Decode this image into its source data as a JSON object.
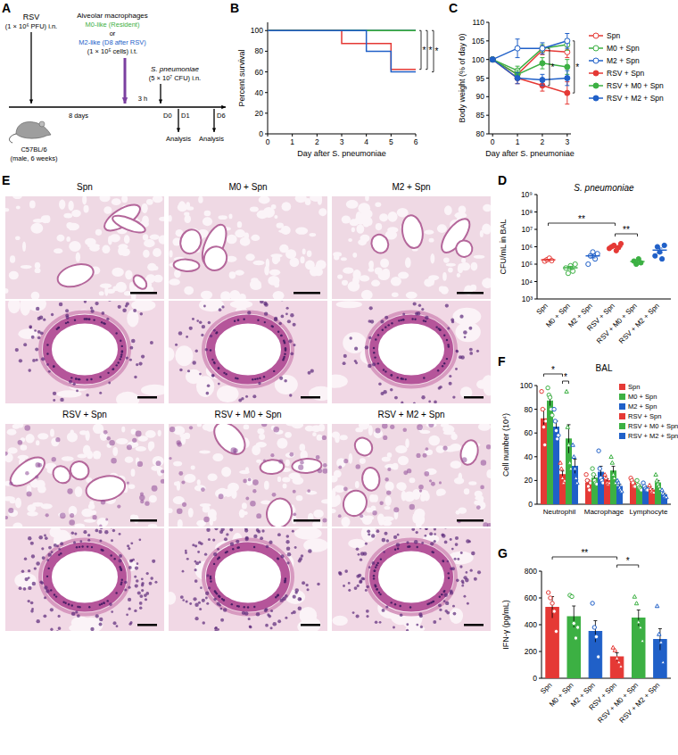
{
  "schematic": {
    "panel": "A",
    "rsv": "RSV",
    "rsv_dose": "(1 × 10⁶ PFU) i.n.",
    "am_title": "Alveolar macrophages",
    "m0": "M0-like (Resident)",
    "or": "or",
    "m2": "M2-like (D8 after RSV)",
    "am_dose": "(1 × 10⁵ cells) i.t.",
    "spn": "S. pneumoniae",
    "spn_dose": "(5 × 10⁷ CFU) i.n.",
    "interval": "8 days",
    "delay": "3 h",
    "mouse": "C57BL/6",
    "mouse_info": "(male, 6 weeks)",
    "d0": "D0",
    "timepoints": [
      {
        "day": "D1",
        "label": "Analysis"
      },
      {
        "day": "D6",
        "label": "Analysis"
      }
    ],
    "m0_color": "#3cb043",
    "m2_color": "#2060c8",
    "arrow_color": "#7b3fa0"
  },
  "histology": {
    "panel": "E",
    "rows": [
      [
        "Spn",
        "M0 + Spn",
        "M2 + Spn"
      ],
      [
        "RSV + Spn",
        "RSV + M0 + Spn",
        "RSV + M2 + Spn"
      ]
    ]
  },
  "chart_data": [
    {
      "panel": "B",
      "type": "line",
      "line_style": "step",
      "x_label": "Day after S. pneumoniae",
      "y_label": "Percent survival",
      "x": [
        0,
        1,
        2,
        3,
        4,
        5,
        6
      ],
      "xlim": [
        0,
        6
      ],
      "xticks": [
        0,
        1,
        2,
        3,
        4,
        5,
        6
      ],
      "ylim": [
        0,
        108
      ],
      "yticks": [
        0,
        20,
        40,
        60,
        80,
        100
      ],
      "series": [
        {
          "name": "Spn",
          "color": "#e53935",
          "values": [
            100,
            100,
            100,
            100,
            100,
            100,
            100
          ]
        },
        {
          "name": "M0 + Spn",
          "color": "#3cb043",
          "values": [
            100,
            100,
            100,
            100,
            100,
            100,
            100
          ]
        },
        {
          "name": "M2 + Spn",
          "color": "#2060c8",
          "values": [
            100,
            100,
            100,
            100,
            100,
            100,
            100
          ]
        },
        {
          "name": "RSV + Spn",
          "color": "#e53935",
          "values": [
            100,
            100,
            100,
            87.5,
            87.5,
            62.5,
            62.5
          ]
        },
        {
          "name": "RSV + M0 + Spn",
          "color": "#3cb043",
          "values": [
            100,
            100,
            100,
            100,
            100,
            100,
            100
          ]
        },
        {
          "name": "RSV + M2 + Spn",
          "color": "#2060c8",
          "values": [
            100,
            100,
            100,
            100,
            80,
            60,
            60
          ]
        }
      ],
      "annotations": [
        "*",
        "*",
        "*"
      ]
    },
    {
      "panel": "C",
      "type": "line",
      "x_label": "Day after S. pneumoniae",
      "y_label": "Body weight (% of day 0)",
      "x": [
        0,
        1,
        2,
        3
      ],
      "xlim": [
        -0.15,
        3.15
      ],
      "xticks": [
        0,
        1,
        2,
        3
      ],
      "ylim": [
        80,
        110
      ],
      "yticks": [
        80,
        85,
        90,
        95,
        100,
        105,
        110
      ],
      "legend": "right",
      "series": [
        {
          "name": "Spn",
          "color": "#e53935",
          "marker": "circle-open",
          "values": [
            100,
            96,
            102.5,
            102
          ],
          "errors": [
            0.5,
            1.5,
            1.2,
            1.5
          ]
        },
        {
          "name": "M0 + Spn",
          "color": "#3cb043",
          "marker": "circle-open",
          "values": [
            100,
            97,
            103,
            104
          ],
          "errors": [
            0.5,
            1.2,
            1,
            1.5
          ]
        },
        {
          "name": "M2 + Spn",
          "color": "#2060c8",
          "marker": "circle-open",
          "values": [
            100,
            103,
            103,
            105
          ],
          "errors": [
            0.5,
            2.5,
            1.5,
            2
          ]
        },
        {
          "name": "RSV + Spn",
          "color": "#e53935",
          "marker": "circle",
          "values": [
            100,
            95,
            93,
            91
          ],
          "errors": [
            0.5,
            1.5,
            1.5,
            3
          ]
        },
        {
          "name": "RSV + M0 + Spn",
          "color": "#3cb043",
          "marker": "circle",
          "values": [
            100,
            96,
            99,
            98
          ],
          "errors": [
            0.5,
            1.2,
            1.5,
            2
          ]
        },
        {
          "name": "RSV + M2 + Spn",
          "color": "#2060c8",
          "marker": "circle",
          "values": [
            100,
            95,
            94.5,
            95
          ],
          "errors": [
            0.5,
            1.5,
            1.5,
            2
          ]
        }
      ],
      "annotations": [
        "*",
        "*"
      ]
    },
    {
      "panel": "D",
      "type": "scatter",
      "title": "S. pneumoniae",
      "y_label": "CFU/mL in BAL",
      "log": "y",
      "categories": [
        "Spn",
        "M0 + Spn",
        "M2 + Spn",
        "RSV + Spn",
        "RSV + M0 + Spn",
        "RSV + M2 + Spn"
      ],
      "ylim": [
        1000,
        1000000000
      ],
      "yticks": [
        {
          "value": 1000,
          "label": "10³"
        },
        {
          "value": 10000,
          "label": "10⁴"
        },
        {
          "value": 100000,
          "label": "10⁵"
        },
        {
          "value": 1000000,
          "label": "10⁶"
        },
        {
          "value": 10000000,
          "label": "10⁷"
        },
        {
          "value": 100000000,
          "label": "10⁸"
        },
        {
          "value": 1000000000,
          "label": "10⁹"
        }
      ],
      "points": [
        [
          150000,
          180000,
          220000,
          160000
        ],
        [
          60000,
          30000,
          80000,
          40000,
          100000
        ],
        [
          100000,
          300000,
          500000,
          200000,
          400000
        ],
        [
          800000,
          1000000,
          1200000,
          600000,
          900000,
          1500000
        ],
        [
          150000,
          100000,
          200000,
          120000
        ],
        [
          300000,
          1000000,
          500000,
          200000,
          1200000
        ]
      ],
      "means": [
        177500,
        62000,
        300000,
        1000000,
        142500,
        640000
      ],
      "errors": [
        15000,
        13000,
        70000,
        130000,
        22000,
        200000
      ],
      "colors": [
        "#e53935",
        "#3cb043",
        "#2060c8",
        "#e53935",
        "#3cb043",
        "#2060c8"
      ],
      "annotations": [
        "**",
        "**"
      ]
    },
    {
      "panel": "F",
      "type": "bar",
      "title": "BAL",
      "y_label": "Cell number (10⁴)",
      "categories": [
        "Neutrophil",
        "Macrophage",
        "Lymphocyte"
      ],
      "ylim": [
        0,
        100
      ],
      "yticks": [
        0,
        20,
        40,
        60,
        80,
        100
      ],
      "legend": "right",
      "series": [
        {
          "name": "Spn",
          "color": "#e53935",
          "marker": "circle-open",
          "values": [
            72,
            18,
            18
          ],
          "errors": [
            8,
            2.5,
            1.4
          ],
          "points": [
            [
              95,
              80,
              65,
              50,
              70
            ],
            [
              25,
              20,
              15,
              12,
              18
            ],
            [
              22,
              20,
              18,
              15,
              15
            ]
          ]
        },
        {
          "name": "M0 + Spn",
          "color": "#3cb043",
          "marker": "circle-open",
          "values": [
            87,
            22,
            15
          ],
          "errors": [
            4,
            2.3,
            1.4
          ],
          "points": [
            [
              98,
              92,
              90,
              80,
              75
            ],
            [
              30,
              25,
              20,
              18,
              17
            ],
            [
              20,
              16,
              14,
              13,
              12
            ]
          ]
        },
        {
          "name": "M2 + Spn",
          "color": "#2060c8",
          "marker": "circle-open",
          "values": [
            65,
            27,
            14
          ],
          "errors": [
            5,
            5,
            1.1
          ],
          "points": [
            [
              80,
              70,
              62,
              55,
              58
            ],
            [
              45,
              30,
              22,
              20,
              18
            ],
            [
              18,
              15,
              13,
              12,
              12
            ]
          ]
        },
        {
          "name": "RSV + Spn",
          "color": "#e53935",
          "marker": "triangle-open",
          "values": [
            25,
            20,
            12
          ],
          "errors": [
            3,
            1.5,
            1.1
          ],
          "points": [
            [
              35,
              30,
              22,
              18,
              20
            ],
            [
              25,
              22,
              18,
              17,
              18
            ],
            [
              16,
              13,
              11,
              10,
              10
            ]
          ]
        },
        {
          "name": "RSV + M0 + Spn",
          "color": "#3cb043",
          "marker": "triangle-open",
          "values": [
            55,
            28,
            18
          ],
          "errors": [
            12,
            4,
            2
          ],
          "points": [
            [
              95,
              65,
              50,
              35,
              30
            ],
            [
              40,
              35,
              25,
              22,
              18
            ],
            [
              25,
              20,
              17,
              15,
              13
            ]
          ]
        },
        {
          "name": "RSV + M2 + Spn",
          "color": "#2060c8",
          "marker": "triangle-open",
          "values": [
            32,
            15,
            8
          ],
          "errors": [
            6,
            1.7,
            1.1
          ],
          "points": [
            [
              50,
              40,
              30,
              22,
              18
            ],
            [
              20,
              18,
              14,
              12,
              11
            ],
            [
              12,
              9,
              7,
              6,
              6
            ]
          ]
        }
      ],
      "annotations": [
        "*",
        "*"
      ]
    },
    {
      "panel": "G",
      "type": "bar",
      "y_label": "IFN-γ (pg/mL)",
      "categories": [
        "Spn",
        "M0 + Spn",
        "M2 + Spn",
        "RSV + Spn",
        "RSV + M0 + Spn",
        "RSV + M2 + Spn"
      ],
      "ylim": [
        0,
        800
      ],
      "yticks": [
        0,
        200,
        400,
        600,
        800
      ],
      "values": [
        530,
        460,
        350,
        160,
        450,
        290
      ],
      "errors": [
        80,
        80,
        80,
        30,
        60,
        80
      ],
      "points": [
        [
          640,
          600,
          560,
          500,
          350
        ],
        [
          620,
          610,
          410,
          300,
          380
        ],
        [
          560,
          380,
          310,
          160
        ],
        [
          230,
          210,
          150,
          120,
          90
        ],
        [
          610,
          560,
          420,
          380,
          280
        ],
        [
          540,
          330,
          270,
          120
        ]
      ],
      "colors": [
        "#e53935",
        "#3cb043",
        "#2060c8",
        "#e53935",
        "#3cb043",
        "#2060c8"
      ],
      "annotations": [
        "**",
        "*"
      ]
    }
  ]
}
